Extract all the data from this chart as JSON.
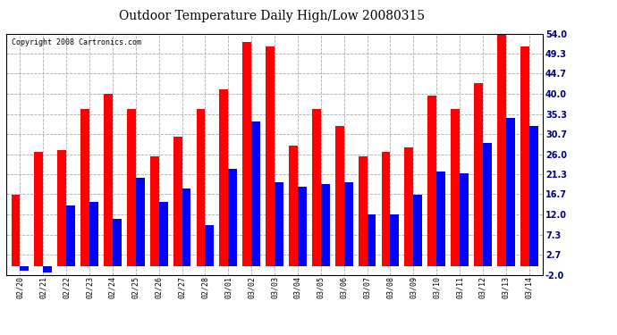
{
  "title": "Outdoor Temperature Daily High/Low 20080315",
  "copyright": "Copyright 2008 Cartronics.com",
  "dates": [
    "02/20",
    "02/21",
    "02/22",
    "02/23",
    "02/24",
    "02/25",
    "02/26",
    "02/27",
    "02/28",
    "03/01",
    "03/02",
    "03/03",
    "03/04",
    "03/05",
    "03/06",
    "03/07",
    "03/08",
    "03/09",
    "03/10",
    "03/11",
    "03/12",
    "03/13",
    "03/14"
  ],
  "highs": [
    16.5,
    26.5,
    27.0,
    36.5,
    40.0,
    36.5,
    25.5,
    30.0,
    36.5,
    41.0,
    52.0,
    51.0,
    28.0,
    36.5,
    32.5,
    25.5,
    26.5,
    27.5,
    39.5,
    36.5,
    42.5,
    55.0,
    51.0
  ],
  "lows": [
    -1.0,
    -1.5,
    14.0,
    15.0,
    11.0,
    20.5,
    15.0,
    18.0,
    9.5,
    22.5,
    33.5,
    19.5,
    18.5,
    19.0,
    19.5,
    12.0,
    12.0,
    16.5,
    22.0,
    21.5,
    28.5,
    34.5,
    32.5
  ],
  "high_color": "#ff0000",
  "low_color": "#0000ff",
  "bg_color": "#ffffff",
  "grid_color": "#aaaaaa",
  "ytick_labels": [
    "54.0",
    "49.3",
    "44.7",
    "40.0",
    "35.3",
    "30.7",
    "26.0",
    "21.3",
    "16.7",
    "12.0",
    "7.3",
    "2.7",
    "-2.0"
  ],
  "ytick_vals": [
    54.0,
    49.3,
    44.7,
    40.0,
    35.3,
    30.7,
    26.0,
    21.3,
    16.7,
    12.0,
    7.3,
    2.7,
    -2.0
  ],
  "ymin": -2.0,
  "ymax": 54.0,
  "bar_width": 0.38,
  "title_fontsize": 10,
  "tick_fontsize": 6,
  "copyright_fontsize": 6
}
